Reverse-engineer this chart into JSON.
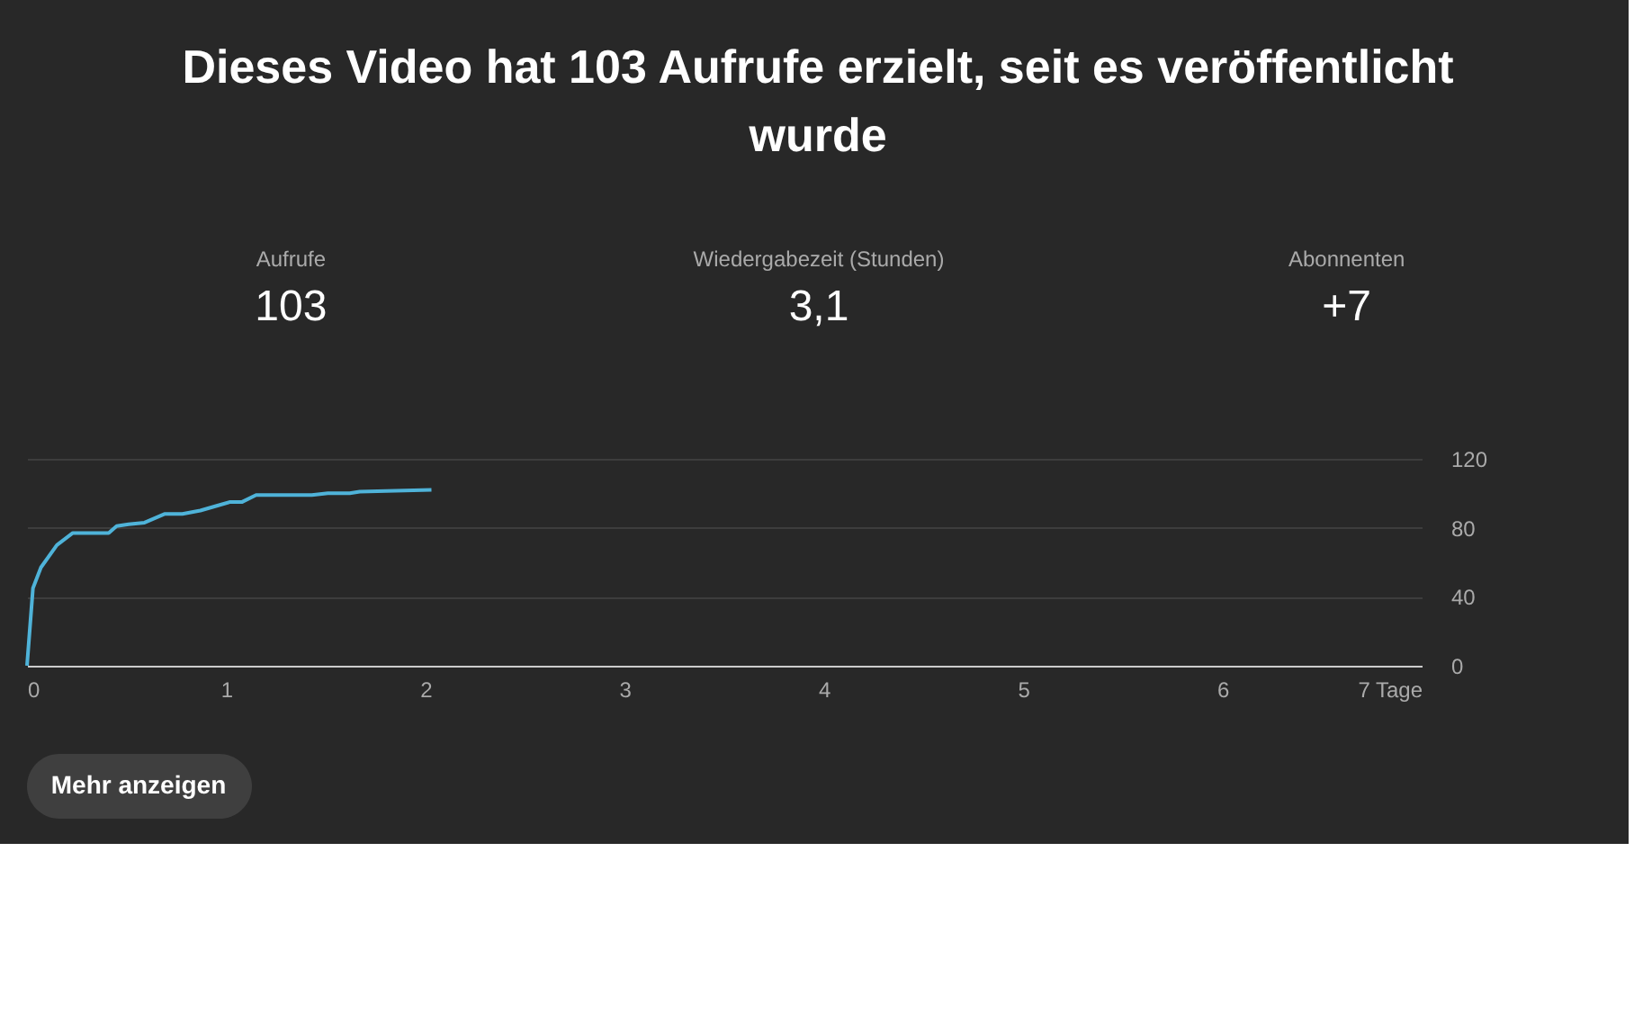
{
  "chart_data": [
    {
      "type": "other",
      "title": "Dieses Video hat 103 Aufrufe erzielt, seit es veröffentlicht wurde",
      "annotations": [
        "Aufrufe",
        "103",
        "Wiedergabezeit (Stunden)",
        "3,1",
        "Abonnenten",
        "+7"
      ]
    },
    {
      "type": "line",
      "x": [
        0,
        0.03,
        0.07,
        0.15,
        0.23,
        0.41,
        0.45,
        0.51,
        0.59,
        0.69,
        0.78,
        0.87,
        0.96,
        1.02,
        1.08,
        1.15,
        1.43,
        1.51,
        1.62,
        1.67,
        2.03
      ],
      "series": [
        {
          "color": "#4fb3d9",
          "values": [
            0,
            45,
            57,
            70,
            77,
            77,
            81,
            82,
            83,
            88,
            88,
            90,
            93,
            95,
            95,
            99,
            99,
            100,
            100,
            101,
            102
          ]
        }
      ],
      "xlim": [
        0,
        7
      ],
      "xticks": [
        0,
        1,
        2,
        3,
        4,
        5,
        6,
        {
          "value": 7,
          "label": "7 Tage"
        }
      ],
      "ylim": [
        0,
        120
      ],
      "yticks": [
        0,
        40,
        80,
        120
      ],
      "grid": "y",
      "marker": "none",
      "line_style": "solid",
      "annotations": [
        "Mehr anzeigen"
      ]
    }
  ]
}
